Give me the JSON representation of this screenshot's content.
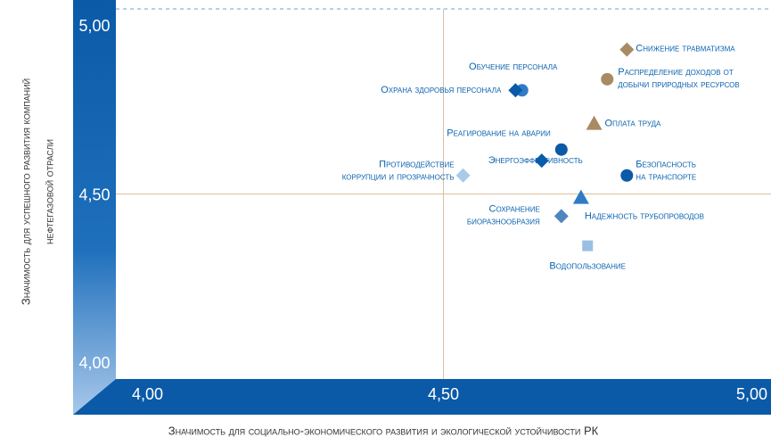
{
  "chart_data": {
    "type": "scatter",
    "x_label": "Значимость для социально-экономического развития и экологической устойчивости РК",
    "y_label": [
      "Значимость для успешного развития компаний",
      "нефтегазовой отрасли"
    ],
    "xlim": [
      4,
      5
    ],
    "ylim": [
      4,
      5
    ],
    "xticks": [
      {
        "value": 4,
        "label": "4,00"
      },
      {
        "value": 4.5,
        "label": "4,50"
      },
      {
        "value": 5,
        "label": "5,00"
      }
    ],
    "yticks": [
      {
        "value": 4,
        "label": "4,00"
      },
      {
        "value": 4.5,
        "label": "4,50"
      },
      {
        "value": 5,
        "label": "5,00"
      }
    ],
    "points": [
      {
        "label": [
          "Снижение травматизма"
        ],
        "x": 4.78,
        "y": 4.89,
        "shape": "diamond",
        "color": "#a88b63"
      },
      {
        "label": [
          "Распределение доходов от",
          "добычи природных ресурсов"
        ],
        "x": 4.75,
        "y": 4.81,
        "shape": "circle",
        "color": "#a88b63"
      },
      {
        "label": [
          "Оплата труда"
        ],
        "x": 4.73,
        "y": 4.69,
        "shape": "triangle",
        "color": "#a88b63"
      },
      {
        "label": [
          "Обучение персонала"
        ],
        "x": 4.62,
        "y": 4.78,
        "shape": "circle",
        "color": "#2f7cc4"
      },
      {
        "label": [
          "Охрана здоровья персонала"
        ],
        "x": 4.61,
        "y": 4.78,
        "shape": "diamond",
        "color": "#0a5aa8"
      },
      {
        "label": [
          "Реагирование на аварии"
        ],
        "x": 4.68,
        "y": 4.62,
        "shape": "circle",
        "color": "#0a5aa8"
      },
      {
        "label": [
          "Энергоэффективность"
        ],
        "x": 4.65,
        "y": 4.59,
        "shape": "diamond",
        "color": "#0a5aa8"
      },
      {
        "label": [
          "Противодействие",
          "коррупции и прозрачность"
        ],
        "x": 4.53,
        "y": 4.55,
        "shape": "diamond",
        "color": "#a9cbea"
      },
      {
        "label": [
          "Безопасность",
          "на транспорте"
        ],
        "x": 4.78,
        "y": 4.55,
        "shape": "circle",
        "color": "#0a5aa8"
      },
      {
        "label": [
          "Надежность трубопроводов"
        ],
        "x": 4.71,
        "y": 4.49,
        "shape": "triangle",
        "color": "#2f7cc4"
      },
      {
        "label": [
          "Сохранение",
          "биоразнообразия"
        ],
        "x": 4.68,
        "y": 4.44,
        "shape": "diamond",
        "color": "#4f86c2"
      },
      {
        "label": [
          "Водопользование"
        ],
        "x": 4.72,
        "y": 4.36,
        "shape": "square",
        "color": "#9bbfe2"
      }
    ]
  }
}
